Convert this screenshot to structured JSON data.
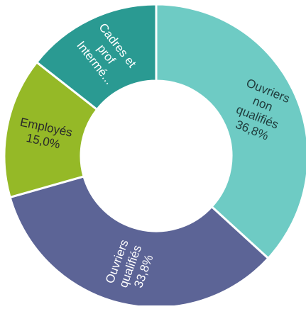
{
  "chart_data": {
    "type": "pie",
    "variant": "donut",
    "slices": [
      {
        "id": "ouvriers-non-qualifies",
        "label_lines": [
          "Ouvriers",
          "non",
          "qualifiés"
        ],
        "value_label": "36,8%",
        "value": 36.8,
        "color": "#6ecbc4",
        "text_color": "#1f3b3b"
      },
      {
        "id": "ouvriers-qualifies",
        "label_lines": [
          "Ouvriers",
          "qualifiés"
        ],
        "value_label": "33,8%",
        "value": 33.8,
        "color": "#5c6496",
        "text_color": "#ffffff"
      },
      {
        "id": "employes",
        "label_lines": [
          "Employés"
        ],
        "value_label": "15,0%",
        "value": 15.0,
        "color": "#95b927",
        "text_color": "#2a2a2a"
      },
      {
        "id": "cadres-prof-interm",
        "label_lines": [
          "Cadres et",
          "prof",
          "Intermé..."
        ],
        "value_label": "",
        "value": 14.4,
        "color": "#2a9a92",
        "text_color": "#ffffff"
      }
    ],
    "separator_color": "#ffffff",
    "legend": "none"
  }
}
